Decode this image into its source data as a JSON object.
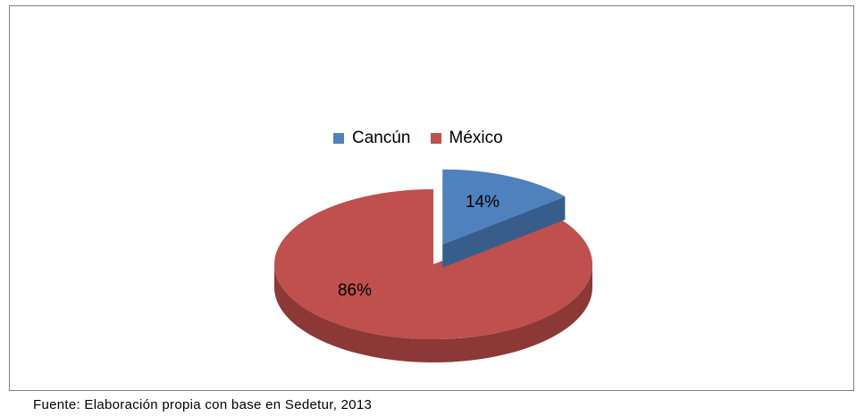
{
  "chart_data": {
    "type": "pie",
    "style": "3d-exploded",
    "categories": [
      "Cancún",
      "México"
    ],
    "values": [
      14,
      86
    ],
    "data_labels": [
      "14%",
      "86%"
    ],
    "legend_position": "top",
    "colors": {
      "Cancún": {
        "top": "#4f81bd",
        "side": "#385d8a"
      },
      "México": {
        "top": "#c0504d",
        "side": "#8c3836"
      }
    }
  },
  "legend": {
    "items": [
      {
        "label": "Cancún",
        "color": "#4f81bd"
      },
      {
        "label": "México",
        "color": "#c0504d"
      }
    ]
  },
  "source_note": "Fuente: Elaboración propia con base en Sedetur, 2013"
}
